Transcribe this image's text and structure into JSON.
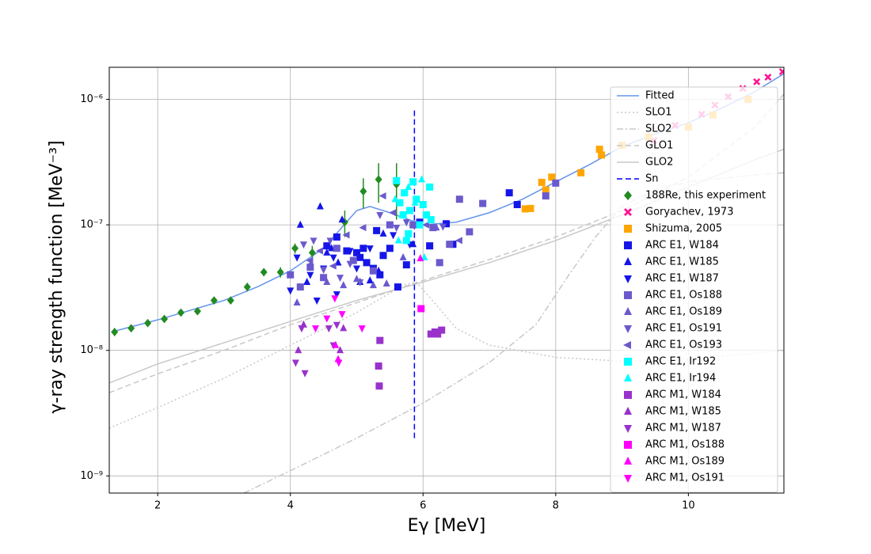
{
  "chart_data": {
    "type": "scatter",
    "xlabel": "Eγ [MeV]",
    "ylabel": "γ-ray strength function [MeV⁻³]",
    "xlim": [
      1.27,
      11.44
    ],
    "ylim": [
      7.3e-10,
      1.8e-06
    ],
    "yscale": "log",
    "grid": true,
    "legend": "upper right",
    "xticks": [
      2,
      4,
      6,
      8,
      10
    ],
    "yticks": [
      {
        "value": 1e-09,
        "label": "10⁻⁹"
      },
      {
        "value": 1e-08,
        "label": "10⁻⁸"
      },
      {
        "value": 1e-07,
        "label": "10⁻⁷"
      },
      {
        "value": 1e-06,
        "label": "10⁻⁶"
      }
    ],
    "series": [
      {
        "name": "Fitted",
        "kind": "line",
        "color": "#6495ed",
        "dash": "solid",
        "x": [
          1.3,
          2,
          3,
          3.5,
          4,
          4.5,
          5,
          5.2,
          5.5,
          6,
          6.5,
          7,
          7.5,
          8,
          8.5,
          9,
          9.5,
          10,
          10.5,
          11,
          11.44
        ],
        "values": [
          1.4e-08,
          1.75e-08,
          2.5e-08,
          3.2e-08,
          4.3e-08,
          6.5e-08,
          1.3e-07,
          1.4e-07,
          1.25e-07,
          1e-07,
          1.05e-07,
          1.25e-07,
          1.6e-07,
          2.2e-07,
          3e-07,
          4.2e-07,
          5.3e-07,
          6.5e-07,
          8.5e-07,
          1.15e-06,
          1.6e-06
        ]
      },
      {
        "name": "SLO1",
        "kind": "line",
        "color": "#c8c8c8",
        "dash": "dotted",
        "x": [
          1.27,
          2,
          3,
          4,
          5,
          5.7,
          5.9,
          6.2,
          6.5,
          7,
          8,
          9,
          10,
          11,
          11.44
        ],
        "values": [
          2.4e-09,
          3.5e-09,
          6e-09,
          1.1e-08,
          2e-08,
          3.3e-08,
          3.5e-08,
          2.3e-08,
          1.5e-08,
          1.1e-08,
          8.8e-09,
          8.2e-09,
          8.5e-09,
          9.5e-09,
          1e-08
        ]
      },
      {
        "name": "SLO2",
        "kind": "line",
        "color": "#c8c8c8",
        "dash": "dashdot",
        "x": [
          3.3,
          4,
          5,
          6,
          7,
          7.7,
          8.2,
          8.6,
          9,
          9.5,
          10,
          11,
          11.44
        ],
        "values": [
          7.3e-10,
          1.1e-09,
          2e-09,
          3.8e-09,
          8e-09,
          1.6e-08,
          4e-08,
          8e-08,
          1.4e-07,
          1.9e-07,
          2.2e-07,
          2.5e-07,
          2.6e-07
        ]
      },
      {
        "name": "GLO1",
        "kind": "line",
        "color": "#c8c8c8",
        "dash": "dashed",
        "x": [
          1.27,
          2,
          3,
          4,
          5,
          6,
          7,
          8,
          9,
          10,
          11,
          11.44
        ],
        "values": [
          4.6e-09,
          6.5e-09,
          1e-08,
          1.6e-08,
          2.4e-08,
          3.6e-08,
          5.3e-08,
          8e-08,
          1.3e-07,
          2.4e-07,
          6e-07,
          1.1e-06
        ]
      },
      {
        "name": "GLO2",
        "kind": "line",
        "color": "#c8c8c8",
        "dash": "solid",
        "x": [
          1.27,
          2,
          3,
          4,
          5,
          6,
          7,
          8,
          9,
          10,
          11,
          11.44
        ],
        "values": [
          5.5e-09,
          7.8e-09,
          1.15e-08,
          1.7e-08,
          2.5e-08,
          3.5e-08,
          5e-08,
          7.5e-08,
          1.2e-07,
          2e-07,
          3.3e-07,
          4e-07
        ]
      },
      {
        "name": "Sn",
        "kind": "line",
        "color": "#0000ff",
        "dash": "dashed",
        "x": [
          5.87,
          5.87
        ],
        "values": [
          2e-09,
          8.5e-07
        ]
      },
      {
        "name": "188Re, this experiment",
        "kind": "scatter",
        "marker": "D",
        "color": "#228b22",
        "x": [
          1.35,
          1.6,
          1.85,
          2.1,
          2.35,
          2.6,
          2.85,
          3.1,
          3.35,
          3.6,
          3.85,
          4.07,
          4.33,
          4.82,
          5.1,
          5.33,
          5.6
        ],
        "values": [
          1.4e-08,
          1.5e-08,
          1.65e-08,
          1.78e-08,
          2e-08,
          2.05e-08,
          2.5e-08,
          2.5e-08,
          3.2e-08,
          4.2e-08,
          4.2e-08,
          6.5e-08,
          6e-08,
          1.05e-07,
          1.85e-07,
          2.3e-07,
          2.1e-07
        ],
        "errors": [
          1e-09,
          1e-09,
          1e-09,
          1e-09,
          1.2e-09,
          1.2e-09,
          1.5e-09,
          1.5e-09,
          2.5e-09,
          3e-09,
          4e-09,
          6e-09,
          8e-09,
          2.5e-08,
          5e-08,
          8e-08,
          1e-07
        ]
      },
      {
        "name": "Goryachev, 1973",
        "kind": "scatter",
        "marker": "X",
        "color": "#ff1493",
        "x": [
          9.48,
          9.8,
          10.2,
          10.4,
          10.6,
          10.82,
          11.03,
          11.2,
          11.42
        ],
        "values": [
          4.7e-07,
          6.2e-07,
          7.6e-07,
          9e-07,
          1.05e-06,
          1.22e-06,
          1.38e-06,
          1.5e-06,
          1.66e-06
        ]
      },
      {
        "name": "Shizuma, 2005",
        "kind": "scatter",
        "marker": "s",
        "color": "#ffa500",
        "x": [
          7.54,
          7.62,
          7.79,
          7.85,
          7.94,
          8.38,
          8.66,
          8.69,
          9.0,
          9.4,
          10.0,
          10.37,
          10.9
        ],
        "values": [
          1.34e-07,
          1.35e-07,
          2.18e-07,
          1.9e-07,
          2.4e-07,
          2.6e-07,
          4e-07,
          3.6e-07,
          4.3e-07,
          5e-07,
          6e-07,
          7.5e-07,
          1e-06
        ]
      },
      {
        "name": "ARC E1, W184",
        "kind": "scatter",
        "marker": "s",
        "color": "#1515e8",
        "x": [
          4.55,
          4.7,
          4.85,
          5.0,
          5.05,
          5.1,
          5.15,
          5.25,
          5.3,
          5.35,
          5.4,
          5.5,
          5.62,
          5.75,
          5.95,
          6.1,
          6.35,
          6.45,
          7.3,
          7.42
        ],
        "values": [
          6.8e-08,
          8e-08,
          6.2e-08,
          6e-08,
          5.5e-08,
          6.5e-08,
          5e-08,
          4.5e-08,
          9e-08,
          4e-08,
          5.7e-08,
          6.5e-08,
          3.2e-08,
          4.8e-08,
          1.05e-07,
          6.8e-08,
          1.02e-07,
          7e-08,
          1.8e-07,
          1.45e-07
        ]
      },
      {
        "name": "ARC E1, W185",
        "kind": "scatter",
        "marker": "^",
        "color": "#1515e8",
        "x": [
          4.15,
          4.25,
          4.45,
          4.55,
          4.62,
          4.72,
          4.78,
          5.05,
          5.2,
          5.33,
          5.4,
          5.85,
          5.95
        ],
        "values": [
          1e-07,
          3.5e-08,
          1.4e-07,
          6e-08,
          6.5e-08,
          5e-08,
          1.1e-07,
          3.5e-08,
          3.6e-08,
          4.3e-08,
          8.5e-08,
          7e-08,
          1e-07
        ]
      },
      {
        "name": "ARC E1, W187",
        "kind": "scatter",
        "marker": "v",
        "color": "#1515e8",
        "x": [
          4.0,
          4.1,
          4.3,
          4.4,
          4.5,
          4.65,
          4.7,
          4.9,
          5.0,
          5.2,
          5.55,
          5.8
        ],
        "values": [
          3e-08,
          5.5e-08,
          4e-08,
          2.5e-08,
          4.5e-08,
          5.5e-08,
          2.8e-08,
          6.2e-08,
          4.5e-08,
          6.5e-08,
          8.3e-08,
          7e-08
        ]
      },
      {
        "name": "ARC E1, Os188",
        "kind": "scatter",
        "marker": "s",
        "color": "#6a5acd",
        "x": [
          4.0,
          4.15,
          4.3,
          4.5,
          4.7,
          4.95,
          5.25,
          5.5,
          6.15,
          6.25,
          6.4,
          6.55,
          6.7,
          6.9,
          7.85,
          8.0,
          5.85
        ],
        "values": [
          4e-08,
          3.2e-08,
          4.6e-08,
          3.8e-08,
          6.5e-08,
          5.2e-08,
          4.3e-08,
          1e-07,
          9.5e-08,
          5e-08,
          7e-08,
          1.6e-07,
          8.8e-08,
          1.48e-07,
          1.7e-07,
          2.15e-07,
          1e-07
        ]
      },
      {
        "name": "ARC E1, Os189",
        "kind": "scatter",
        "marker": "^",
        "color": "#6a5acd",
        "x": [
          4.1,
          4.3,
          4.55,
          4.8,
          5.0,
          5.25,
          5.45,
          5.7,
          6.2
        ],
        "values": [
          2.4e-08,
          4.8e-08,
          3.5e-08,
          3.3e-08,
          3.7e-08,
          3.3e-08,
          3.4e-08,
          5.5e-08,
          9.5e-08
        ]
      },
      {
        "name": "ARC E1, Os191",
        "kind": "scatter",
        "marker": "v",
        "color": "#6a5acd",
        "x": [
          4.2,
          4.35,
          4.5,
          4.6,
          4.75,
          4.9,
          5.05,
          5.35,
          5.6,
          5.75,
          6.3
        ],
        "values": [
          7e-08,
          7.5e-08,
          4.4e-08,
          7.5e-08,
          3.8e-08,
          4.9e-08,
          3.5e-08,
          1.2e-07,
          9.5e-08,
          1.05e-07,
          9.7e-08
        ]
      },
      {
        "name": "ARC E1, Os193",
        "kind": "scatter",
        "marker": "<",
        "color": "#6a5acd",
        "x": [
          4.3,
          4.45,
          4.65,
          4.85,
          5.1,
          5.4,
          5.55,
          6.05,
          6.55
        ],
        "values": [
          5.2e-08,
          6.2e-08,
          4.7e-08,
          8.3e-08,
          9.5e-08,
          1.7e-07,
          1.25e-07,
          1e-07,
          7.5e-08
        ]
      },
      {
        "name": "ARC E1, Ir192",
        "kind": "scatter",
        "marker": "s",
        "color": "#00ffff",
        "x": [
          5.6,
          5.65,
          5.7,
          5.75,
          5.8,
          5.85,
          5.9,
          5.95,
          6.0,
          6.05,
          6.1,
          6.12,
          5.78,
          5.72
        ],
        "values": [
          2.25e-07,
          1.5e-07,
          1.2e-07,
          7.5e-08,
          1.3e-07,
          2.2e-07,
          1.6e-07,
          1e-07,
          1.45e-07,
          1.2e-07,
          2e-07,
          1.1e-07,
          8.5e-08,
          1.8e-07
        ]
      },
      {
        "name": "ARC E1, Ir194",
        "kind": "scatter",
        "marker": "^",
        "color": "#00ffff",
        "x": [
          5.58,
          5.68,
          5.78,
          5.88,
          5.98,
          6.02,
          5.63
        ],
        "values": [
          1.6e-07,
          1.2e-07,
          2e-07,
          1.5e-07,
          2.3e-07,
          5.5e-08,
          7.5e-08
        ]
      },
      {
        "name": "ARC M1, W184",
        "kind": "scatter",
        "marker": "s",
        "color": "#9932cc",
        "x": [
          5.33,
          5.34,
          5.35,
          6.12,
          6.18,
          6.22,
          6.28
        ],
        "values": [
          7.5e-09,
          5.2e-09,
          1.2e-08,
          1.35e-08,
          1.4e-08,
          1.35e-08,
          1.45e-08
        ]
      },
      {
        "name": "ARC M1, W185",
        "kind": "scatter",
        "marker": "^",
        "color": "#9932cc",
        "x": [
          4.12,
          4.2,
          4.75,
          4.8
        ],
        "values": [
          1e-08,
          1.6e-08,
          1e-08,
          1.5e-08
        ]
      },
      {
        "name": "ARC M1, W187",
        "kind": "scatter",
        "marker": "v",
        "color": "#9932cc",
        "x": [
          4.08,
          4.17,
          4.22,
          4.58,
          4.65,
          4.7
        ],
        "values": [
          8e-09,
          1.5e-08,
          6.6e-09,
          1.5e-08,
          1.1e-08,
          1.6e-08
        ]
      },
      {
        "name": "ARC M1, Os188",
        "kind": "scatter",
        "marker": "s",
        "color": "#ff00ff",
        "x": [
          5.97
        ],
        "values": [
          2.15e-08
        ]
      },
      {
        "name": "ARC M1, Os189",
        "kind": "scatter",
        "marker": "^",
        "color": "#ff00ff",
        "x": [
          4.68,
          4.72,
          5.96
        ],
        "values": [
          1.1e-08,
          8.5e-09,
          5.4e-08
        ]
      },
      {
        "name": "ARC M1, Os191",
        "kind": "scatter",
        "marker": "v",
        "color": "#ff00ff",
        "x": [
          4.38,
          4.55,
          4.67,
          4.73,
          4.78,
          5.08
        ],
        "values": [
          1.5e-08,
          1.8e-08,
          2.6e-08,
          8e-09,
          1.95e-08,
          1.5e-08
        ]
      }
    ]
  }
}
